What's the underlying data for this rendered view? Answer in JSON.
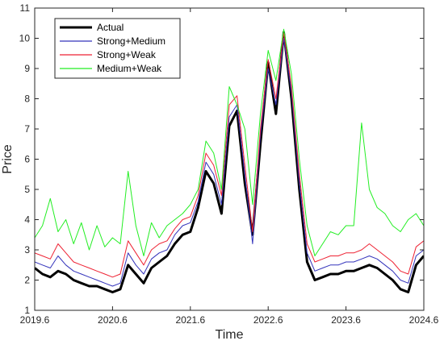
{
  "chart_data": {
    "type": "line",
    "xlabel": "Time",
    "ylabel": "Price",
    "xlim": [
      2019.6,
      2024.6
    ],
    "ylim": [
      1,
      11
    ],
    "xticks": [
      "2019.6",
      "2020.6",
      "2021.6",
      "2022.6",
      "2023.6",
      "2024.6"
    ],
    "yticks": [
      "1",
      "2",
      "3",
      "4",
      "5",
      "6",
      "7",
      "8",
      "9",
      "10",
      "11"
    ],
    "grid": false,
    "legend": "top-left",
    "series": [
      {
        "name": "Actual",
        "color": "#000000",
        "x": [
          2019.6,
          2019.7,
          2019.8,
          2019.9,
          2020.0,
          2020.1,
          2020.2,
          2020.3,
          2020.4,
          2020.5,
          2020.6,
          2020.7,
          2020.8,
          2020.9,
          2021.0,
          2021.1,
          2021.2,
          2021.3,
          2021.4,
          2021.5,
          2021.6,
          2021.7,
          2021.8,
          2021.9,
          2022.0,
          2022.1,
          2022.2,
          2022.3,
          2022.4,
          2022.5,
          2022.6,
          2022.7,
          2022.8,
          2022.9,
          2023.0,
          2023.1,
          2023.2,
          2023.3,
          2023.4,
          2023.5,
          2023.6,
          2023.7,
          2023.8,
          2023.9,
          2024.0,
          2024.1,
          2024.2,
          2024.3,
          2024.4,
          2024.5,
          2024.6
        ],
        "values": [
          2.4,
          2.2,
          2.1,
          2.3,
          2.2,
          2.0,
          1.9,
          1.8,
          1.8,
          1.7,
          1.6,
          1.7,
          2.5,
          2.2,
          1.9,
          2.4,
          2.6,
          2.8,
          3.2,
          3.5,
          3.6,
          4.4,
          5.6,
          5.2,
          4.2,
          7.1,
          7.6,
          5.2,
          3.5,
          6.5,
          9.2,
          7.5,
          10.2,
          8.0,
          5.0,
          2.6,
          2.0,
          2.1,
          2.2,
          2.2,
          2.3,
          2.3,
          2.4,
          2.5,
          2.4,
          2.2,
          2.0,
          1.7,
          1.6,
          2.5,
          2.8
        ]
      },
      {
        "name": "Strong+Medium",
        "color": "#3333bb",
        "x": [
          2019.6,
          2019.7,
          2019.8,
          2019.9,
          2020.0,
          2020.1,
          2020.2,
          2020.3,
          2020.4,
          2020.5,
          2020.6,
          2020.7,
          2020.8,
          2020.9,
          2021.0,
          2021.1,
          2021.2,
          2021.3,
          2021.4,
          2021.5,
          2021.6,
          2021.7,
          2021.8,
          2021.9,
          2022.0,
          2022.1,
          2022.2,
          2022.3,
          2022.4,
          2022.5,
          2022.6,
          2022.7,
          2022.8,
          2022.9,
          2023.0,
          2023.1,
          2023.2,
          2023.3,
          2023.4,
          2023.5,
          2023.6,
          2023.7,
          2023.8,
          2023.9,
          2024.0,
          2024.1,
          2024.2,
          2024.3,
          2024.4,
          2024.5,
          2024.6
        ],
        "values": [
          2.6,
          2.5,
          2.4,
          2.8,
          2.5,
          2.3,
          2.2,
          2.1,
          2.0,
          1.9,
          1.8,
          1.9,
          2.9,
          2.5,
          2.2,
          2.7,
          2.9,
          3.0,
          3.5,
          3.8,
          3.9,
          4.6,
          5.9,
          5.5,
          4.5,
          7.4,
          7.8,
          5.5,
          3.2,
          6.8,
          9.0,
          7.8,
          10.0,
          8.2,
          5.2,
          2.9,
          2.3,
          2.4,
          2.5,
          2.5,
          2.6,
          2.6,
          2.7,
          2.8,
          2.7,
          2.5,
          2.3,
          2.0,
          1.9,
          2.8,
          3.0
        ]
      },
      {
        "name": "Strong+Weak",
        "color": "#ee2233",
        "x": [
          2019.6,
          2019.7,
          2019.8,
          2019.9,
          2020.0,
          2020.1,
          2020.2,
          2020.3,
          2020.4,
          2020.5,
          2020.6,
          2020.7,
          2020.8,
          2020.9,
          2021.0,
          2021.1,
          2021.2,
          2021.3,
          2021.4,
          2021.5,
          2021.6,
          2021.7,
          2021.8,
          2021.9,
          2022.0,
          2022.1,
          2022.2,
          2022.3,
          2022.4,
          2022.5,
          2022.6,
          2022.7,
          2022.8,
          2022.9,
          2023.0,
          2023.1,
          2023.2,
          2023.3,
          2023.4,
          2023.5,
          2023.6,
          2023.7,
          2023.8,
          2023.9,
          2024.0,
          2024.1,
          2024.2,
          2024.3,
          2024.4,
          2024.5,
          2024.6
        ],
        "values": [
          2.9,
          2.8,
          2.7,
          3.2,
          2.9,
          2.6,
          2.5,
          2.4,
          2.3,
          2.2,
          2.1,
          2.2,
          3.3,
          2.9,
          2.5,
          3.0,
          3.2,
          3.3,
          3.7,
          4.0,
          4.1,
          4.8,
          6.2,
          5.8,
          4.8,
          7.8,
          8.1,
          5.8,
          3.6,
          7.0,
          9.3,
          8.0,
          10.2,
          8.4,
          5.5,
          3.2,
          2.6,
          2.7,
          2.8,
          2.8,
          2.9,
          2.9,
          3.0,
          3.2,
          3.0,
          2.8,
          2.6,
          2.3,
          2.2,
          3.1,
          3.3
        ]
      },
      {
        "name": "Medium+Weak",
        "color": "#22ee22",
        "x": [
          2019.6,
          2019.7,
          2019.8,
          2019.9,
          2020.0,
          2020.1,
          2020.2,
          2020.3,
          2020.4,
          2020.5,
          2020.6,
          2020.7,
          2020.8,
          2020.9,
          2021.0,
          2021.1,
          2021.2,
          2021.3,
          2021.4,
          2021.5,
          2021.6,
          2021.7,
          2021.8,
          2021.9,
          2022.0,
          2022.1,
          2022.2,
          2022.3,
          2022.4,
          2022.5,
          2022.6,
          2022.7,
          2022.8,
          2022.9,
          2023.0,
          2023.1,
          2023.2,
          2023.3,
          2023.4,
          2023.5,
          2023.6,
          2023.7,
          2023.8,
          2023.9,
          2024.0,
          2024.1,
          2024.2,
          2024.3,
          2024.4,
          2024.5,
          2024.6
        ],
        "values": [
          3.4,
          3.8,
          4.7,
          3.6,
          4.0,
          3.2,
          3.9,
          3.0,
          3.8,
          3.1,
          3.4,
          3.2,
          5.6,
          3.8,
          2.8,
          3.9,
          3.4,
          3.8,
          4.0,
          4.2,
          4.5,
          5.0,
          6.6,
          6.2,
          5.0,
          8.4,
          7.8,
          7.0,
          4.5,
          7.5,
          9.6,
          8.6,
          10.3,
          8.8,
          6.0,
          3.8,
          2.8,
          3.2,
          3.6,
          3.5,
          3.8,
          3.8,
          7.2,
          5.0,
          4.4,
          4.2,
          3.8,
          3.6,
          4.0,
          4.2,
          3.8
        ]
      }
    ]
  }
}
